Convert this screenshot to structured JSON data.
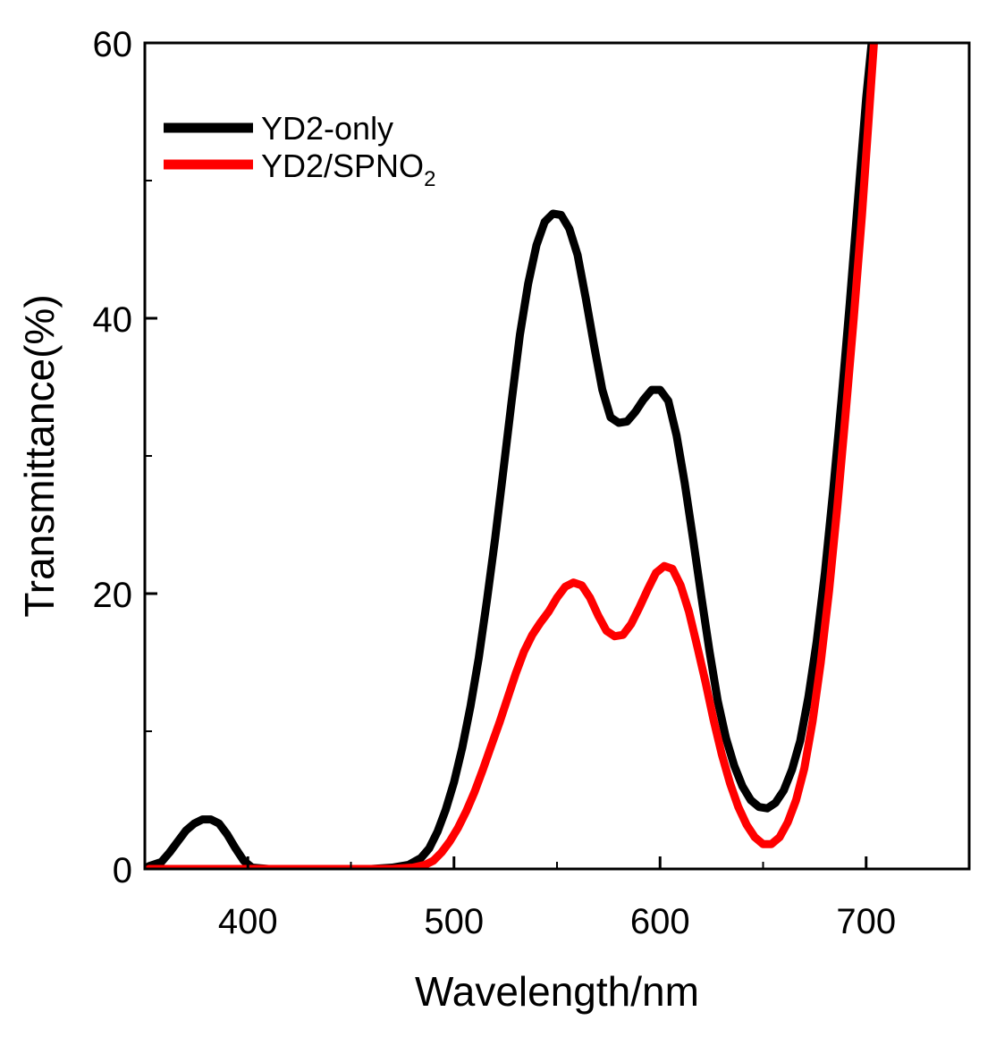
{
  "chart_data": {
    "type": "line",
    "xlabel": "Wavelength/nm",
    "ylabel": "Transmittance(%)",
    "xlim": [
      350,
      750
    ],
    "ylim": [
      0,
      60
    ],
    "xticks": [
      400,
      500,
      600,
      700
    ],
    "xtick_labels": [
      "400",
      "500",
      "600",
      "700"
    ],
    "yticks": [
      0,
      20,
      40,
      60
    ],
    "ytick_labels": [
      "0",
      "20",
      "40",
      "60"
    ],
    "grid": false,
    "legend_position": "top-left",
    "series": [
      {
        "name": "YD2-only",
        "color": "#000000",
        "points": [
          [
            352,
            0.2
          ],
          [
            358,
            0.5
          ],
          [
            362,
            1.2
          ],
          [
            366,
            2.0
          ],
          [
            370,
            2.8
          ],
          [
            374,
            3.3
          ],
          [
            378,
            3.6
          ],
          [
            382,
            3.6
          ],
          [
            386,
            3.3
          ],
          [
            390,
            2.5
          ],
          [
            394,
            1.5
          ],
          [
            398,
            0.6
          ],
          [
            402,
            0.1
          ],
          [
            410,
            0
          ],
          [
            440,
            0
          ],
          [
            460,
            0
          ],
          [
            470,
            0.1
          ],
          [
            478,
            0.3
          ],
          [
            484,
            0.8
          ],
          [
            488,
            1.5
          ],
          [
            492,
            2.7
          ],
          [
            496,
            4.3
          ],
          [
            500,
            6.3
          ],
          [
            504,
            8.8
          ],
          [
            508,
            11.8
          ],
          [
            512,
            15.3
          ],
          [
            516,
            19.5
          ],
          [
            520,
            24.0
          ],
          [
            524,
            29.0
          ],
          [
            528,
            34.0
          ],
          [
            532,
            38.8
          ],
          [
            536,
            42.5
          ],
          [
            540,
            45.3
          ],
          [
            544,
            47.0
          ],
          [
            548,
            47.6
          ],
          [
            552,
            47.5
          ],
          [
            556,
            46.5
          ],
          [
            560,
            44.6
          ],
          [
            564,
            41.4
          ],
          [
            568,
            38.0
          ],
          [
            572,
            34.8
          ],
          [
            576,
            32.8
          ],
          [
            580,
            32.4
          ],
          [
            584,
            32.5
          ],
          [
            588,
            33.2
          ],
          [
            592,
            34.1
          ],
          [
            596,
            34.8
          ],
          [
            600,
            34.8
          ],
          [
            604,
            34.0
          ],
          [
            608,
            31.5
          ],
          [
            612,
            28.0
          ],
          [
            616,
            24.0
          ],
          [
            620,
            19.8
          ],
          [
            624,
            15.8
          ],
          [
            628,
            12.2
          ],
          [
            632,
            9.5
          ],
          [
            636,
            7.5
          ],
          [
            640,
            6.0
          ],
          [
            644,
            5.0
          ],
          [
            648,
            4.5
          ],
          [
            652,
            4.4
          ],
          [
            656,
            4.8
          ],
          [
            660,
            5.7
          ],
          [
            664,
            7.2
          ],
          [
            668,
            9.3
          ],
          [
            672,
            12.5
          ],
          [
            676,
            16.5
          ],
          [
            680,
            21.5
          ],
          [
            684,
            27.5
          ],
          [
            688,
            34.0
          ],
          [
            692,
            41.0
          ],
          [
            696,
            48.5
          ],
          [
            700,
            56.0
          ],
          [
            703,
            60.5
          ]
        ]
      },
      {
        "name": "YD2/SPNO2",
        "color": "#ff0000",
        "points": [
          [
            352,
            0
          ],
          [
            380,
            0
          ],
          [
            400,
            0
          ],
          [
            440,
            0
          ],
          [
            470,
            0
          ],
          [
            480,
            0.1
          ],
          [
            486,
            0.3
          ],
          [
            490,
            0.6
          ],
          [
            494,
            1.2
          ],
          [
            498,
            2.0
          ],
          [
            502,
            3.0
          ],
          [
            506,
            4.2
          ],
          [
            510,
            5.6
          ],
          [
            514,
            7.2
          ],
          [
            518,
            8.9
          ],
          [
            522,
            10.6
          ],
          [
            526,
            12.4
          ],
          [
            530,
            14.2
          ],
          [
            534,
            15.8
          ],
          [
            538,
            17.0
          ],
          [
            542,
            17.9
          ],
          [
            546,
            18.7
          ],
          [
            550,
            19.7
          ],
          [
            554,
            20.5
          ],
          [
            558,
            20.8
          ],
          [
            562,
            20.6
          ],
          [
            566,
            19.7
          ],
          [
            570,
            18.4
          ],
          [
            574,
            17.3
          ],
          [
            578,
            16.9
          ],
          [
            582,
            17.0
          ],
          [
            586,
            17.8
          ],
          [
            590,
            19.0
          ],
          [
            594,
            20.3
          ],
          [
            598,
            21.5
          ],
          [
            602,
            22.0
          ],
          [
            606,
            21.8
          ],
          [
            610,
            20.6
          ],
          [
            614,
            18.7
          ],
          [
            618,
            16.2
          ],
          [
            622,
            13.6
          ],
          [
            626,
            10.8
          ],
          [
            630,
            8.3
          ],
          [
            634,
            6.2
          ],
          [
            638,
            4.5
          ],
          [
            642,
            3.2
          ],
          [
            646,
            2.3
          ],
          [
            650,
            1.8
          ],
          [
            654,
            1.8
          ],
          [
            658,
            2.3
          ],
          [
            662,
            3.4
          ],
          [
            666,
            5.0
          ],
          [
            670,
            7.3
          ],
          [
            674,
            10.7
          ],
          [
            678,
            15.0
          ],
          [
            682,
            20.2
          ],
          [
            686,
            26.3
          ],
          [
            690,
            33.0
          ],
          [
            694,
            40.0
          ],
          [
            698,
            47.5
          ],
          [
            701,
            54.0
          ],
          [
            704,
            60.5
          ]
        ]
      }
    ]
  },
  "legend": {
    "entries": [
      {
        "label": "YD2-only"
      },
      {
        "label_main": "YD2/SPNO",
        "label_sub": "2"
      }
    ]
  }
}
